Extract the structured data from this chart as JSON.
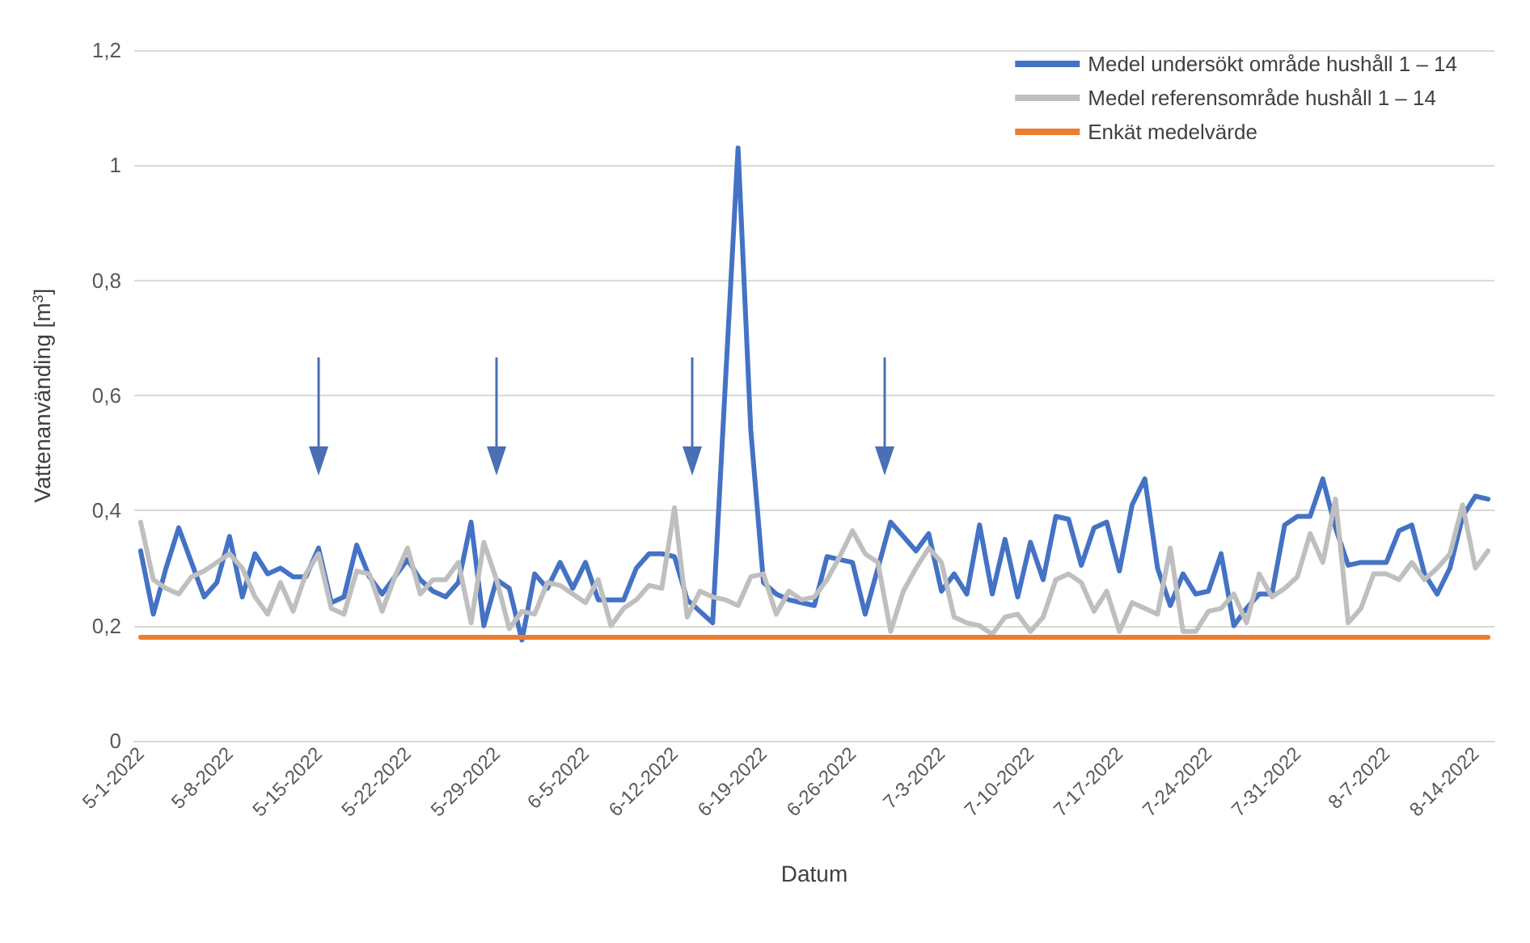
{
  "chart_data": {
    "type": "line",
    "xlabel": "Datum",
    "ylabel": "Vattenanvänding [m$^{3}$]",
    "categories": [
      "5-1-2022",
      null,
      null,
      null,
      null,
      null,
      null,
      "5-8-2022",
      null,
      null,
      null,
      null,
      null,
      null,
      "5-15-2022",
      null,
      null,
      null,
      null,
      null,
      null,
      "5-22-2022",
      null,
      null,
      null,
      null,
      null,
      null,
      "5-29-2022",
      null,
      null,
      null,
      null,
      null,
      null,
      "6-5-2022",
      null,
      null,
      null,
      null,
      null,
      null,
      "6-12-2022",
      null,
      null,
      null,
      null,
      null,
      null,
      "6-19-2022",
      null,
      null,
      null,
      null,
      null,
      null,
      "6-26-2022",
      null,
      null,
      null,
      null,
      null,
      null,
      "7-3-2022",
      null,
      null,
      null,
      null,
      null,
      null,
      "7-10-2022",
      null,
      null,
      null,
      null,
      null,
      null,
      "7-17-2022",
      null,
      null,
      null,
      null,
      null,
      null,
      "7-24-2022",
      null,
      null,
      null,
      null,
      null,
      null,
      "7-31-2022",
      null,
      null,
      null,
      null,
      null,
      null,
      "8-7-2022",
      null,
      null,
      null,
      null,
      null,
      null,
      "8-14-2022",
      null
    ],
    "series": [
      {
        "name": "Medel undersökt område hushåll 1 – 14",
        "color": "#4472c4",
        "values": [
          0.33,
          0.22,
          0.3,
          0.37,
          0.31,
          0.25,
          0.275,
          0.355,
          0.25,
          0.325,
          0.29,
          0.3,
          0.285,
          0.285,
          0.335,
          0.24,
          0.25,
          0.34,
          0.285,
          0.255,
          0.285,
          0.315,
          0.28,
          0.26,
          0.25,
          0.275,
          0.38,
          0.2,
          0.28,
          0.265,
          0.175,
          0.29,
          0.265,
          0.31,
          0.265,
          0.31,
          0.245,
          0.245,
          0.245,
          0.3,
          0.325,
          0.325,
          0.32,
          0.245,
          0.225,
          0.205,
          0.62,
          1.03,
          0.54,
          0.275,
          0.255,
          0.245,
          0.24,
          0.235,
          0.32,
          0.315,
          0.31,
          0.22,
          0.3,
          0.38,
          0.355,
          0.33,
          0.36,
          0.26,
          0.29,
          0.255,
          0.375,
          0.255,
          0.35,
          0.25,
          0.345,
          0.28,
          0.39,
          0.385,
          0.305,
          0.37,
          0.38,
          0.295,
          0.41,
          0.455,
          0.3,
          0.235,
          0.29,
          0.255,
          0.26,
          0.325,
          0.2,
          0.23,
          0.255,
          0.255,
          0.375,
          0.39,
          0.39,
          0.455,
          0.37,
          0.305,
          0.31,
          0.31,
          0.31,
          0.365,
          0.375,
          0.29,
          0.255,
          0.3,
          0.39,
          0.425,
          0.42
        ]
      },
      {
        "name": "Medel referensområde hushåll 1 – 14",
        "color": "#bfbfbf",
        "values": [
          0.38,
          0.28,
          0.265,
          0.255,
          0.285,
          0.295,
          0.31,
          0.325,
          0.3,
          0.25,
          0.22,
          0.275,
          0.225,
          0.29,
          0.325,
          0.23,
          0.22,
          0.295,
          0.29,
          0.225,
          0.285,
          0.335,
          0.255,
          0.28,
          0.28,
          0.31,
          0.205,
          0.345,
          0.28,
          0.195,
          0.225,
          0.22,
          0.275,
          0.27,
          0.255,
          0.24,
          0.28,
          0.2,
          0.23,
          0.245,
          0.27,
          0.265,
          0.405,
          0.215,
          0.26,
          0.25,
          0.245,
          0.235,
          0.285,
          0.29,
          0.22,
          0.26,
          0.245,
          0.25,
          0.28,
          0.32,
          0.365,
          0.325,
          0.31,
          0.19,
          0.26,
          0.3,
          0.335,
          0.31,
          0.215,
          0.205,
          0.2,
          0.185,
          0.215,
          0.22,
          0.19,
          0.215,
          0.28,
          0.29,
          0.275,
          0.225,
          0.26,
          0.19,
          0.24,
          0.23,
          0.22,
          0.335,
          0.19,
          0.19,
          0.225,
          0.23,
          0.255,
          0.205,
          0.29,
          0.25,
          0.265,
          0.285,
          0.36,
          0.31,
          0.42,
          0.205,
          0.23,
          0.29,
          0.29,
          0.28,
          0.31,
          0.28,
          0.3,
          0.325,
          0.41,
          0.3,
          0.33
        ]
      },
      {
        "name": "Enkät medelvärde",
        "color": "#ed7d31",
        "values": [
          0.18,
          0.18,
          0.18,
          0.18,
          0.18,
          0.18,
          0.18,
          0.18,
          0.18,
          0.18,
          0.18,
          0.18,
          0.18,
          0.18,
          0.18,
          0.18,
          0.18,
          0.18,
          0.18,
          0.18,
          0.18,
          0.18,
          0.18,
          0.18,
          0.18,
          0.18,
          0.18,
          0.18,
          0.18,
          0.18,
          0.18,
          0.18,
          0.18,
          0.18,
          0.18,
          0.18,
          0.18,
          0.18,
          0.18,
          0.18,
          0.18,
          0.18,
          0.18,
          0.18,
          0.18,
          0.18,
          0.18,
          0.18,
          0.18,
          0.18,
          0.18,
          0.18,
          0.18,
          0.18,
          0.18,
          0.18,
          0.18,
          0.18,
          0.18,
          0.18,
          0.18,
          0.18,
          0.18,
          0.18,
          0.18,
          0.18,
          0.18,
          0.18,
          0.18,
          0.18,
          0.18,
          0.18,
          0.18,
          0.18,
          0.18,
          0.18,
          0.18,
          0.18,
          0.18,
          0.18,
          0.18,
          0.18,
          0.18,
          0.18,
          0.18,
          0.18,
          0.18,
          0.18,
          0.18,
          0.18,
          0.18,
          0.18,
          0.18,
          0.18,
          0.18,
          0.18,
          0.18,
          0.18,
          0.18,
          0.18,
          0.18,
          0.18,
          0.18,
          0.18,
          0.18,
          0.18,
          0.18
        ]
      }
    ],
    "ylim": [
      0,
      1.2
    ],
    "yticks": [
      0,
      {
        "value": 0.2,
        "label": "0,2"
      },
      {
        "value": 0.4,
        "label": "0,4"
      },
      {
        "value": 0.6,
        "label": "0,6"
      },
      {
        "value": 0.8,
        "label": "0,8"
      },
      1,
      {
        "value": 1.2,
        "label": "1,2"
      }
    ],
    "grid": "y",
    "legend": "top right",
    "marker": "none",
    "line_style": "solid"
  }
}
